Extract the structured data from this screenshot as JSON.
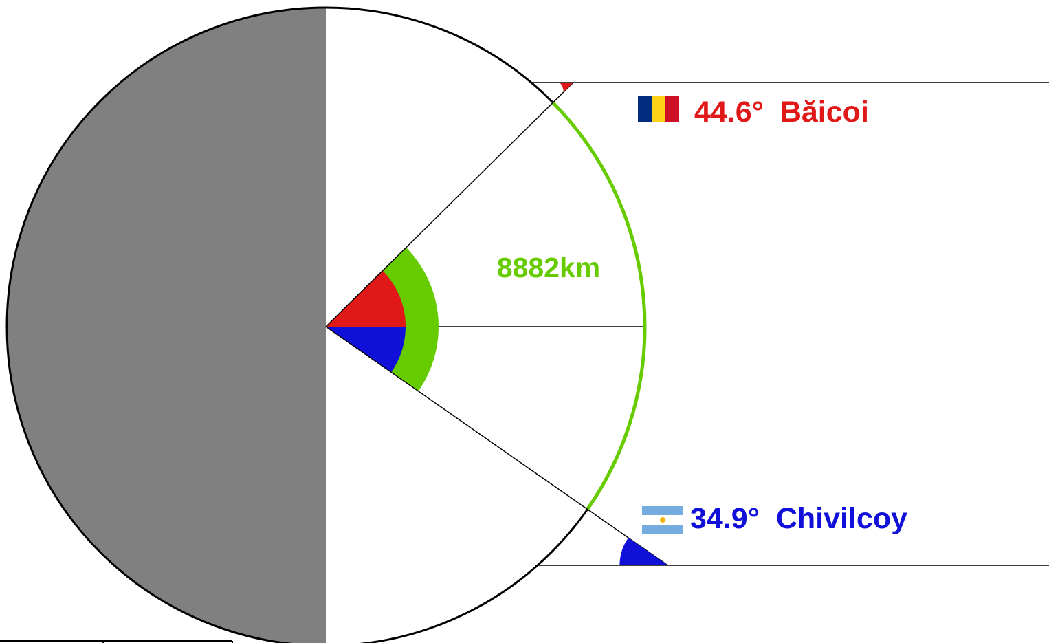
{
  "diagram": {
    "distance_label": "8882km",
    "distance_color": "#66cc00",
    "night_side_color": "#808080",
    "places": [
      {
        "name": "Băicoi",
        "latitude_label": "44.6°",
        "latitude_deg": 44.6,
        "hemisphere": "north",
        "color": "#e01818",
        "flag_icon": "romania-flag-icon",
        "flag_colors": [
          "#002b7f",
          "#fcd116",
          "#ce1126"
        ]
      },
      {
        "name": "Chivilcoy",
        "latitude_label": "34.9°",
        "latitude_deg": 34.9,
        "hemisphere": "south",
        "color": "#1010d8",
        "flag_icon": "argentina-flag-icon",
        "flag_colors": [
          "#74acdf",
          "#ffffff",
          "#f6b40e"
        ]
      }
    ]
  }
}
